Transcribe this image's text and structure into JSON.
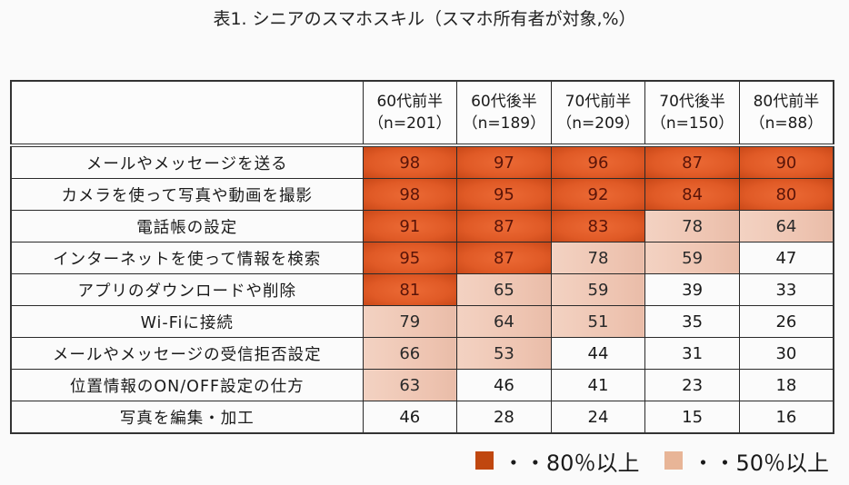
{
  "title": "表1. シニアのスマホスキル（スマホ所有者が対象,%）",
  "colors": {
    "high": "#c0470f",
    "mid": "#e8b597"
  },
  "chart_data": {
    "type": "table",
    "title": "表1. シニアのスマホスキル（スマホ所有者が対象,%）",
    "columns": [
      {
        "line1": "60代前半",
        "line2": "（n=201）"
      },
      {
        "line1": "60代後半",
        "line2": "（n=189）"
      },
      {
        "line1": "70代前半",
        "line2": "（n=209）"
      },
      {
        "line1": "70代後半",
        "line2": "（n=150）"
      },
      {
        "line1": "80代前半",
        "line2": "（n=88）"
      }
    ],
    "rows": [
      {
        "label": "メールやメッセージを送る",
        "values": [
          98,
          97,
          96,
          87,
          90
        ]
      },
      {
        "label": "カメラを使って写真や動画を撮影",
        "values": [
          98,
          95,
          92,
          84,
          80
        ]
      },
      {
        "label": "電話帳の設定",
        "values": [
          91,
          87,
          83,
          78,
          64
        ]
      },
      {
        "label": "インターネットを使って情報を検索",
        "values": [
          95,
          87,
          78,
          59,
          47
        ]
      },
      {
        "label": "アプリのダウンロードや削除",
        "values": [
          81,
          65,
          59,
          39,
          33
        ]
      },
      {
        "label": "Wi-Fiに接続",
        "values": [
          79,
          64,
          51,
          35,
          26
        ]
      },
      {
        "label": "メールやメッセージの受信拒否設定",
        "values": [
          66,
          53,
          44,
          31,
          30
        ]
      },
      {
        "label": "位置情報のON/OFF設定の仕方",
        "values": [
          63,
          46,
          41,
          23,
          18
        ]
      },
      {
        "label": "写真を編集・加工",
        "values": [
          46,
          28,
          24,
          15,
          16
        ]
      }
    ],
    "thresholds": {
      "high": 80,
      "mid": 50
    }
  },
  "legend": [
    {
      "label": "・・80％以上",
      "color": "#c0470f"
    },
    {
      "label": "・・50％以上",
      "color": "#e8b597"
    }
  ]
}
